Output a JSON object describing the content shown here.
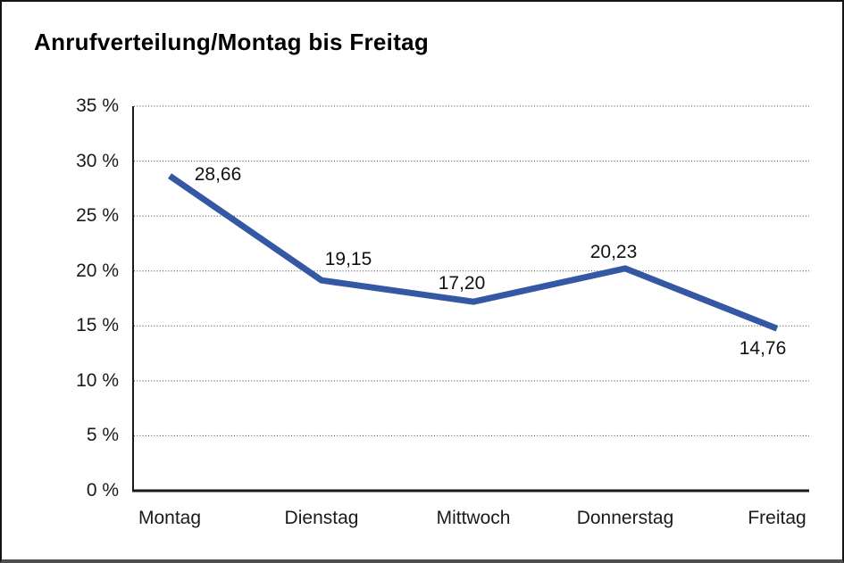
{
  "chart_data": {
    "type": "line",
    "title": "Anrufverteilung/Montag bis Freitag",
    "categories": [
      "Montag",
      "Dienstag",
      "Mittwoch",
      "Donnerstag",
      "Freitag"
    ],
    "values": [
      28.66,
      19.15,
      17.2,
      20.23,
      14.76
    ],
    "value_labels": [
      "28,66",
      "19,15",
      "17,20",
      "20,23",
      "14,76"
    ],
    "y_ticks": [
      0,
      5,
      10,
      15,
      20,
      25,
      30,
      35
    ],
    "y_tick_labels": [
      "0 %",
      "5 %",
      "10 %",
      "15 %",
      "20 %",
      "25 %",
      "30 %",
      "35 %"
    ],
    "ylim": [
      0,
      35
    ],
    "xlabel": "",
    "ylabel": "",
    "legend": "none",
    "grid": "horizontal-dotted",
    "line_color": "#3458A4",
    "axis_color": "#1a1a1a",
    "gridline_color": "#3c3c3c",
    "text_color": "#1a1a1a"
  }
}
